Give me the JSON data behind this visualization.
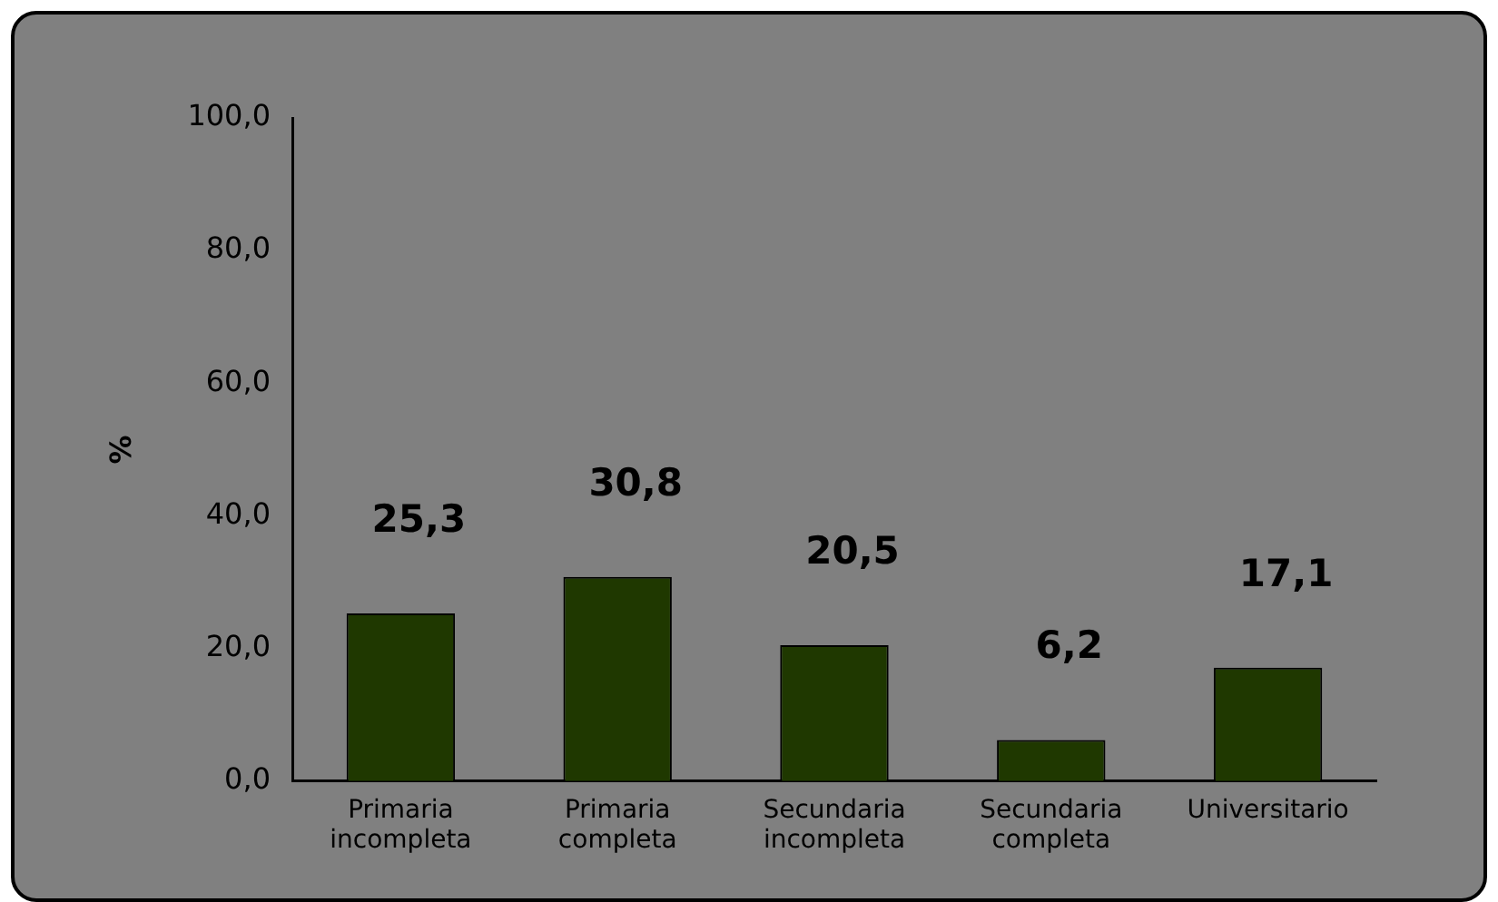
{
  "chart_data": {
    "type": "bar",
    "ylabel": "%",
    "categories": [
      "Primaria incompleta",
      "Primaria completa",
      "Secundaria incompleta",
      "Secundaria completa",
      "Universitario"
    ],
    "values": [
      25.3,
      30.8,
      20.5,
      6.2,
      17.1
    ],
    "value_labels": [
      "25,3",
      "30,8",
      "20,5",
      "6,2",
      "17,1"
    ],
    "color": "#1f3800",
    "ylim": [
      0,
      100
    ],
    "yticks": [
      {
        "value": 0,
        "label": "0,0"
      },
      {
        "value": 20,
        "label": "20,0"
      },
      {
        "value": 40,
        "label": "40,0"
      },
      {
        "value": 60,
        "label": "60,0"
      },
      {
        "value": 80,
        "label": "80,0"
      },
      {
        "value": 100,
        "label": "100,0"
      }
    ],
    "grid": false,
    "legend": false
  }
}
